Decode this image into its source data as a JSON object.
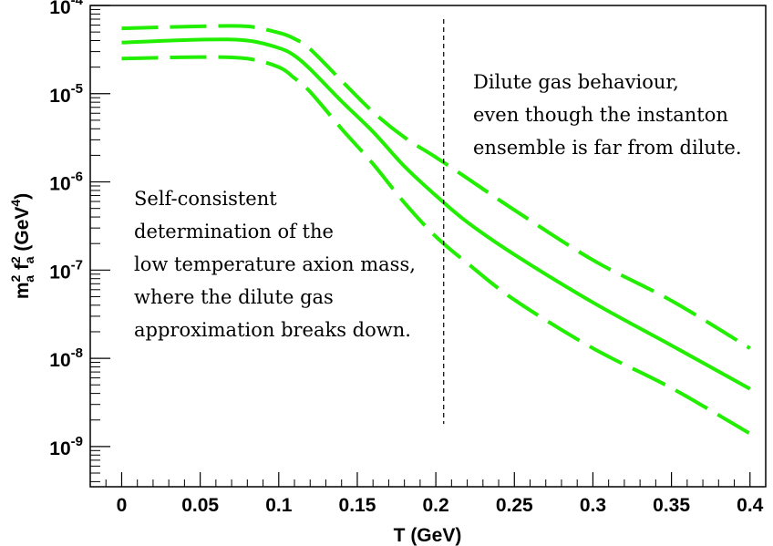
{
  "chart_data": {
    "type": "line",
    "title": "",
    "xlabel": "T (GeV)",
    "ylabel": {
      "base1": "m",
      "sup1": "2",
      "sub1": "a",
      "base2": " f",
      "sup2": "2",
      "sub2": "a",
      "rest": " (GeV",
      "sup3": "4",
      "close": ")"
    },
    "xlim": [
      -0.02,
      0.41
    ],
    "ylim": [
      3.5e-10,
      0.0001
    ],
    "yscale": "log",
    "grid": false,
    "x_ticks": [
      {
        "value": 0,
        "label": "0"
      },
      {
        "value": 0.05,
        "label": "0.05"
      },
      {
        "value": 0.1,
        "label": "0.1"
      },
      {
        "value": 0.15,
        "label": "0.15"
      },
      {
        "value": 0.2,
        "label": "0.2"
      },
      {
        "value": 0.25,
        "label": "0.25"
      },
      {
        "value": 0.3,
        "label": "0.3"
      },
      {
        "value": 0.35,
        "label": "0.35"
      },
      {
        "value": 0.4,
        "label": "0.4"
      }
    ],
    "y_ticks": [
      {
        "value": 0.0001,
        "base": "10",
        "exp": "-4"
      },
      {
        "value": 1e-05,
        "base": "10",
        "exp": "-5"
      },
      {
        "value": 1e-06,
        "base": "10",
        "exp": "-6"
      },
      {
        "value": 1e-07,
        "base": "10",
        "exp": "-7"
      },
      {
        "value": 1e-08,
        "base": "10",
        "exp": "-8"
      },
      {
        "value": 1e-09,
        "base": "10",
        "exp": "-9"
      }
    ],
    "series": [
      {
        "style": "dashed",
        "color": "#22ee00",
        "x": [
          0,
          0.05,
          0.08,
          0.1,
          0.11,
          0.12,
          0.14,
          0.16,
          0.18,
          0.2,
          0.22,
          0.25,
          0.3,
          0.35,
          0.4
        ],
        "y": [
          5.5e-05,
          5.8e-05,
          5.8e-05,
          4.9e-05,
          4.2e-05,
          3.2e-05,
          1.4e-05,
          6.2e-06,
          3.2e-06,
          1.9e-06,
          1.1e-06,
          4.8e-07,
          1.3e-07,
          4.5e-08,
          1.3e-08
        ]
      },
      {
        "style": "solid",
        "color": "#22ee00",
        "x": [
          0,
          0.05,
          0.08,
          0.1,
          0.11,
          0.12,
          0.14,
          0.16,
          0.18,
          0.2,
          0.22,
          0.25,
          0.3,
          0.35,
          0.4
        ],
        "y": [
          3.8e-05,
          4.1e-05,
          4e-05,
          3.3e-05,
          2.7e-05,
          1.9e-05,
          8.2e-06,
          3.7e-06,
          1.5e-06,
          7e-07,
          3.5e-07,
          1.5e-07,
          4.3e-08,
          1.4e-08,
          4.5e-09
        ]
      },
      {
        "style": "dashed",
        "color": "#22ee00",
        "x": [
          0,
          0.05,
          0.08,
          0.1,
          0.11,
          0.12,
          0.14,
          0.16,
          0.18,
          0.2,
          0.22,
          0.25,
          0.3,
          0.35,
          0.4
        ],
        "y": [
          2.5e-05,
          2.6e-05,
          2.5e-05,
          2e-05,
          1.5e-05,
          1.05e-05,
          4e-06,
          1.6e-06,
          5.8e-07,
          2.4e-07,
          1.2e-07,
          4.6e-08,
          1.3e-08,
          4.6e-09,
          1.4e-09
        ]
      }
    ],
    "vline": {
      "x": 0.205,
      "y_from": 1.8e-09,
      "y_to": 7e-05,
      "style": "dashed",
      "color": "#000000"
    },
    "annotations": [
      {
        "name": "annotation-dilute-gas",
        "lines": [
          "Dilute gas behaviour,",
          "even though the instanton",
          "ensemble is far from dilute."
        ]
      },
      {
        "name": "annotation-self-consistent",
        "lines": [
          "Self-consistent",
          "determination of the",
          "low temperature axion mass,",
          "where the dilute gas",
          "approximation breaks down."
        ]
      }
    ]
  }
}
